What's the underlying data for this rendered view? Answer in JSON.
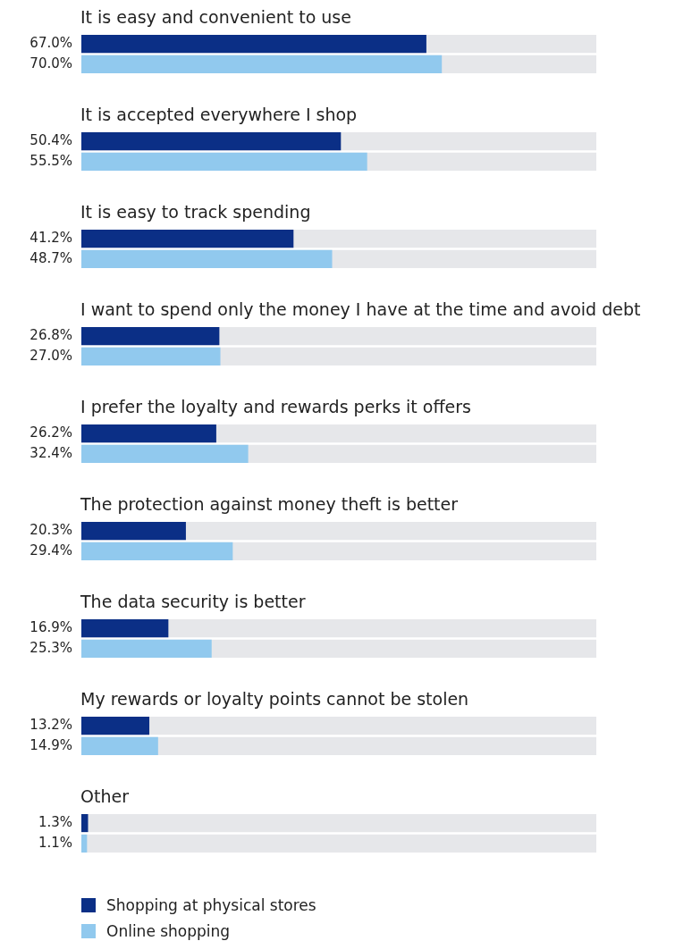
{
  "chart_data": {
    "type": "bar",
    "orientation": "horizontal",
    "categories": [
      "It is easy and convenient to use",
      "It is accepted everywhere I shop",
      "It is easy to track spending",
      "I want to spend only the money I have at the time and avoid debt",
      "I prefer the loyalty and rewards perks it offers",
      "The protection against money theft is better",
      "The data security is better",
      "My rewards or loyalty points cannot be stolen",
      "Other"
    ],
    "series": [
      {
        "name": "Shopping at physical stores",
        "color": "#0b2f86",
        "values": [
          67.0,
          50.4,
          41.2,
          26.8,
          26.2,
          20.3,
          16.9,
          13.2,
          1.3
        ],
        "value_labels": [
          "67.0%",
          "50.4%",
          "41.2%",
          "26.8%",
          "26.2%",
          "20.3%",
          "16.9%",
          "13.2%",
          "1.3%"
        ]
      },
      {
        "name": "Online shopping",
        "color": "#91c9ee",
        "values": [
          70.0,
          55.5,
          48.7,
          27.0,
          32.4,
          29.4,
          25.3,
          14.9,
          1.1
        ],
        "value_labels": [
          "70.0%",
          "55.5%",
          "48.7%",
          "27.0%",
          "32.4%",
          "29.4%",
          "25.3%",
          "14.9%",
          "1.1%"
        ]
      }
    ],
    "xlim": [
      0,
      100
    ],
    "legend": "bottom left"
  }
}
